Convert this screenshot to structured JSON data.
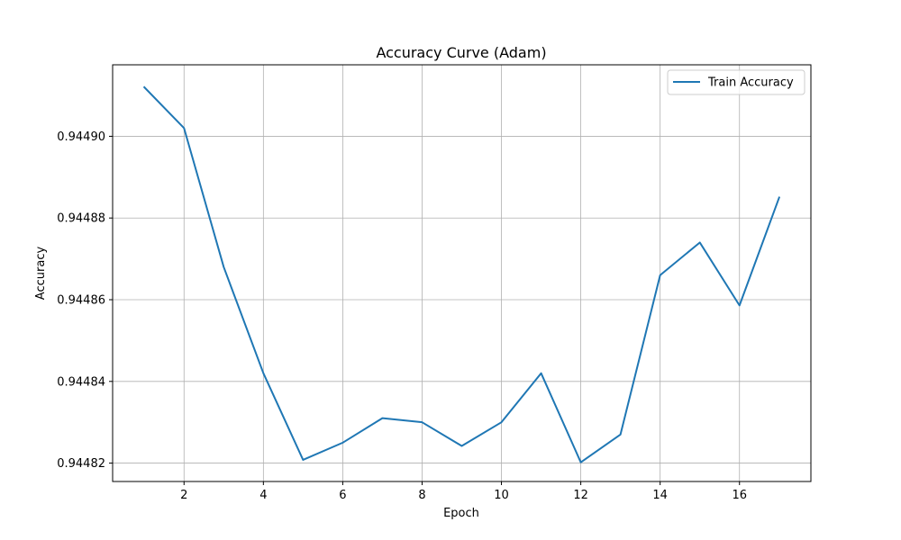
{
  "chart_data": {
    "type": "line",
    "title": "Accuracy Curve (Adam)",
    "xlabel": "Epoch",
    "ylabel": "Accuracy",
    "xlim": [
      0.2,
      17.8
    ],
    "ylim": [
      0.9448155,
      0.9449175
    ],
    "xticks": [
      2,
      4,
      6,
      8,
      10,
      12,
      14,
      16
    ],
    "yticks": [
      0.94482,
      0.94484,
      0.94486,
      0.94488,
      0.9449
    ],
    "ytick_labels": [
      "0.94482",
      "0.94484",
      "0.94486",
      "0.94488",
      "0.94490"
    ],
    "grid": true,
    "legend_position": "top-right",
    "series": [
      {
        "name": "Train Accuracy",
        "color": "#1f77b4",
        "x": [
          1,
          2,
          3,
          4,
          5,
          6,
          7,
          8,
          9,
          10,
          11,
          12,
          13,
          14,
          15,
          16,
          17
        ],
        "y": [
          0.944912,
          0.944902,
          0.944868,
          0.944842,
          0.9448208,
          0.944825,
          0.944831,
          0.94483,
          0.9448242,
          0.94483,
          0.944842,
          0.9448202,
          0.944827,
          0.944866,
          0.944874,
          0.9448586,
          0.944885
        ]
      }
    ]
  }
}
